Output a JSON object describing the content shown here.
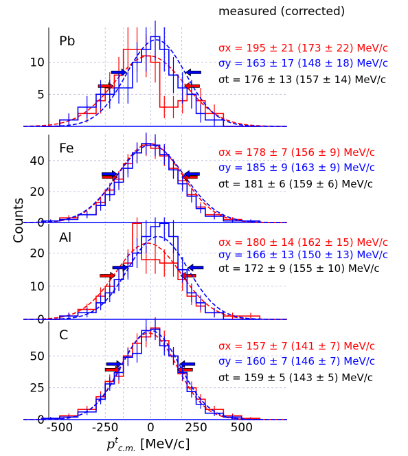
{
  "header": "measured (corrected)",
  "y_axis_label": "Counts",
  "x_axis_label": {
    "var": "p",
    "sup": "t",
    "sub": "c.m.",
    "unit": "[MeV/c]"
  },
  "colors": {
    "x": "#ff0000",
    "y": "#0000ff",
    "t": "#000000",
    "grid": "#b9b9d9"
  },
  "x_ticks": [
    "-500",
    "-250",
    "0",
    "250",
    "500"
  ],
  "chart_data": [
    {
      "type": "bar",
      "label": "Pb",
      "xlim": [
        -700,
        750
      ],
      "ylim": [
        0,
        15
      ],
      "y_ticks": [
        "5",
        "10"
      ],
      "bin_edges": [
        -600,
        -500,
        -400,
        -300,
        -250,
        -200,
        -150,
        -100,
        -50,
        0,
        50,
        100,
        150,
        200,
        250,
        300,
        400,
        500,
        600
      ],
      "series": [
        {
          "name": "x",
          "values": [
            0,
            1,
            2,
            4,
            6,
            8,
            12,
            12,
            11,
            10,
            3,
            3,
            4,
            5,
            4,
            2,
            0,
            0
          ],
          "gauss": {
            "mean": -10,
            "sigma": 195,
            "amp": 11
          }
        },
        {
          "name": "y",
          "values": [
            0,
            1,
            3,
            5,
            5,
            6,
            6,
            10,
            12,
            14,
            12,
            8,
            6,
            5,
            2,
            1,
            0,
            0
          ],
          "gauss": {
            "mean": 30,
            "sigma": 163,
            "amp": 13.5
          }
        }
      ],
      "sigma_x": "σx = 195 ± 21  (173 ± 22) MeV/c",
      "sigma_y": "σy = 163 ± 17  (148 ± 18) MeV/c",
      "sigma_t": "σt = 176 ± 13  (157 ± 14) MeV/c"
    },
    {
      "type": "bar",
      "label": "Fe",
      "xlim": [
        -700,
        750
      ],
      "ylim": [
        0,
        55
      ],
      "y_ticks": [
        "0",
        "20",
        "40"
      ],
      "bin_edges": [
        -600,
        -500,
        -400,
        -300,
        -250,
        -200,
        -150,
        -100,
        -50,
        0,
        50,
        100,
        150,
        200,
        250,
        300,
        400,
        500,
        600
      ],
      "series": [
        {
          "name": "x",
          "values": [
            1,
            3,
            5,
            13,
            21,
            28,
            38,
            45,
            50,
            48,
            43,
            35,
            27,
            18,
            10,
            5,
            2,
            1
          ],
          "gauss": {
            "mean": -5,
            "sigma": 178,
            "amp": 51
          }
        },
        {
          "name": "y",
          "values": [
            1,
            2,
            5,
            11,
            18,
            26,
            35,
            45,
            51,
            50,
            44,
            34,
            25,
            17,
            9,
            4,
            1,
            1
          ],
          "gauss": {
            "mean": 0,
            "sigma": 185,
            "amp": 50
          }
        }
      ],
      "sigma_x": "σx = 178 ± 7  (156 ± 9) MeV/c",
      "sigma_y": "σy = 185 ± 9  (163 ± 9) MeV/c",
      "sigma_t": "σt = 181 ± 6  (159 ± 6) MeV/c"
    },
    {
      "type": "bar",
      "label": "Al",
      "xlim": [
        -700,
        750
      ],
      "ylim": [
        0,
        28
      ],
      "y_ticks": [
        "0",
        "10",
        "20"
      ],
      "bin_edges": [
        -600,
        -500,
        -400,
        -300,
        -250,
        -200,
        -150,
        -100,
        -50,
        0,
        50,
        100,
        150,
        200,
        250,
        300,
        400,
        500,
        600
      ],
      "series": [
        {
          "name": "x",
          "values": [
            0,
            1,
            3,
            7,
            10,
            12,
            17,
            29,
            18,
            18,
            17,
            17,
            12,
            7,
            4,
            2,
            1,
            1
          ],
          "gauss": {
            "mean": -15,
            "sigma": 180,
            "amp": 23
          }
        },
        {
          "name": "y",
          "values": [
            0,
            1,
            2,
            5,
            8,
            12,
            16,
            20,
            25,
            28,
            29,
            25,
            15,
            8,
            5,
            2,
            0,
            0
          ],
          "gauss": {
            "mean": 40,
            "sigma": 166,
            "amp": 25
          }
        }
      ],
      "sigma_x": "σx = 180 ± 14  (162 ± 15) MeV/c",
      "sigma_y": "σy = 166 ± 13  (150 ± 13) MeV/c",
      "sigma_t": "σt = 172 ± 9  (155 ± 10) MeV/c"
    },
    {
      "type": "bar",
      "label": "C",
      "xlim": [
        -700,
        750
      ],
      "ylim": [
        0,
        75
      ],
      "y_ticks": [
        "0",
        "25",
        "50"
      ],
      "bin_edges": [
        -600,
        -500,
        -400,
        -300,
        -250,
        -200,
        -150,
        -100,
        -50,
        0,
        50,
        100,
        150,
        200,
        250,
        300,
        400,
        500,
        600
      ],
      "series": [
        {
          "name": "x",
          "values": [
            1,
            3,
            8,
            18,
            30,
            34,
            50,
            60,
            65,
            72,
            62,
            50,
            36,
            25,
            16,
            8,
            3,
            1
          ],
          "gauss": {
            "mean": -10,
            "sigma": 157,
            "amp": 68
          }
        },
        {
          "name": "y",
          "values": [
            1,
            2,
            6,
            16,
            28,
            37,
            49,
            52,
            70,
            71,
            58,
            50,
            37,
            22,
            12,
            5,
            2,
            0
          ],
          "gauss": {
            "mean": 0,
            "sigma": 160,
            "amp": 70
          }
        }
      ],
      "sigma_x": "σx = 157 ± 7  (141 ± 7) MeV/c",
      "sigma_y": "σy = 160 ± 7  (146 ± 7) MeV/c",
      "sigma_t": "σt = 159 ± 5  (143 ± 5) MeV/c"
    }
  ]
}
